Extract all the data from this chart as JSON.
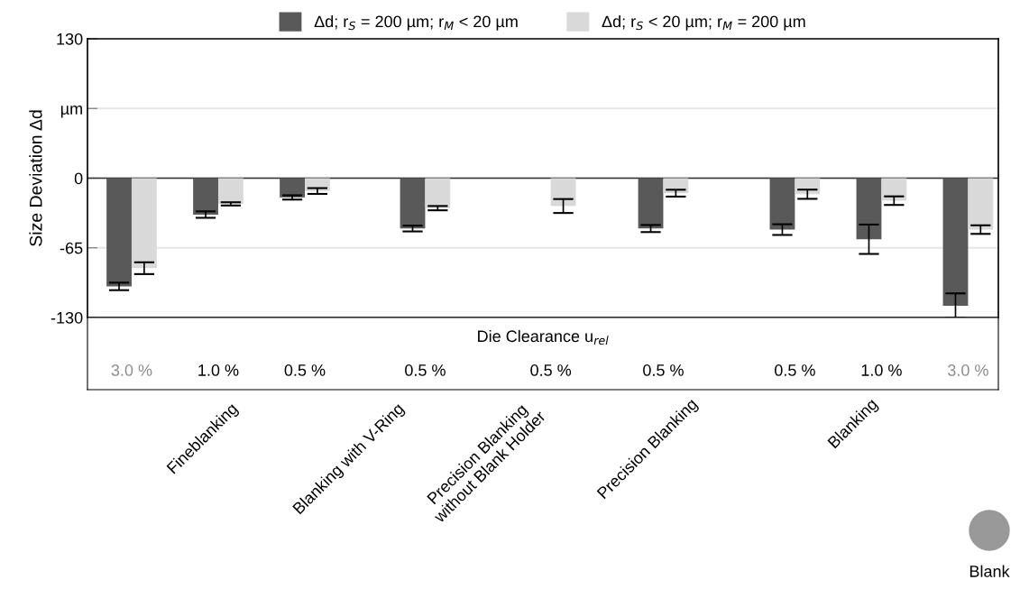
{
  "chart_data": {
    "type": "bar",
    "categories": [
      "3.0 %",
      "1.0 %",
      "0.5 %",
      "0.5 %",
      "0.5 %",
      "0.5 %",
      "0.5 %",
      "1.0 %",
      "3.0 %"
    ],
    "series": [
      {
        "name": "Δd; r$_{S}$ = 200 µm; r$_{M}$ < 20 µm",
        "color": "#595959",
        "values": [
          -101,
          -34,
          -18,
          -47,
          null,
          -47,
          -48,
          -57,
          -119
        ],
        "errors": [
          3.5,
          3,
          2,
          2.7,
          null,
          3.3,
          5,
          13.7,
          11.5
        ]
      },
      {
        "name": "Δd; r$_{S}$ < 20 µm; r$_{M}$ = 200 µm",
        "color": "#d9d9d9",
        "values": [
          -84,
          -24,
          -12,
          -28,
          -26,
          -14,
          -15,
          -21,
          -48
        ],
        "errors": [
          5.5,
          1.5,
          2.7,
          2,
          6.5,
          3.2,
          4.3,
          4,
          4
        ]
      }
    ],
    "xlabel": "Die Clearance u$_{rel}$",
    "ylabel": "Size Deviation Δd",
    "ylim": [
      -130,
      130
    ],
    "yticks": [
      -130,
      -65,
      0,
      {
        "value": 65,
        "label": "µm"
      },
      130
    ],
    "grid": "y",
    "legend": "top",
    "annotations": [
      "Fineblanking",
      "Blanking with V-Ring",
      "Precision Blanking\nwithout Blank Holder",
      "Precision Blanking",
      "Blanking",
      "Blank"
    ]
  }
}
